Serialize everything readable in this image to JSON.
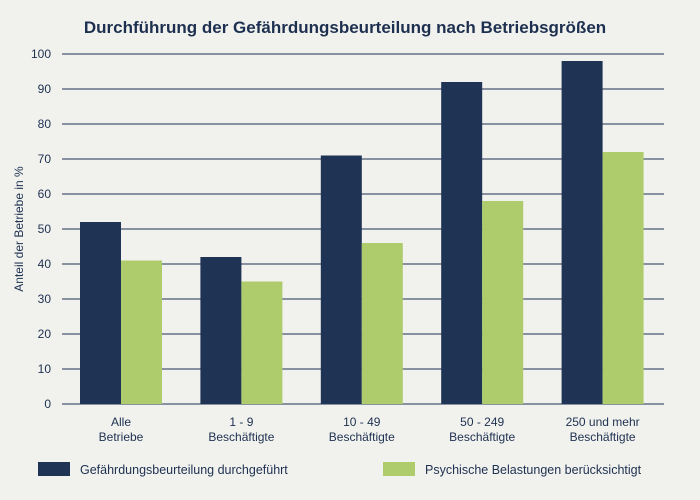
{
  "chart_data": {
    "type": "bar",
    "title": "Durchführung der Gefährdungsbeurteilung nach Betriebsgrößen",
    "xlabel": "",
    "ylabel": "Anteil der Betriebe in %",
    "ylim": [
      0,
      100
    ],
    "yticks": [
      0,
      10,
      20,
      30,
      40,
      50,
      60,
      70,
      80,
      90,
      100
    ],
    "grid": true,
    "legend_position": "bottom",
    "categories": [
      [
        "Alle",
        "Betriebe"
      ],
      [
        "1 - 9",
        "Beschäftigte"
      ],
      [
        "10 - 49",
        "Beschäftigte"
      ],
      [
        "50 - 249",
        "Beschäftigte"
      ],
      [
        "250 und mehr",
        "Beschäftigte"
      ]
    ],
    "series": [
      {
        "name": "Gefährdungsbeurteilung durchgeführt",
        "color": "#1f3354",
        "values": [
          52,
          42,
          71,
          92,
          98
        ]
      },
      {
        "name": "Psychische Belastungen berücksichtigt",
        "color": "#afcc6c",
        "values": [
          41,
          35,
          46,
          58,
          72
        ]
      }
    ]
  }
}
